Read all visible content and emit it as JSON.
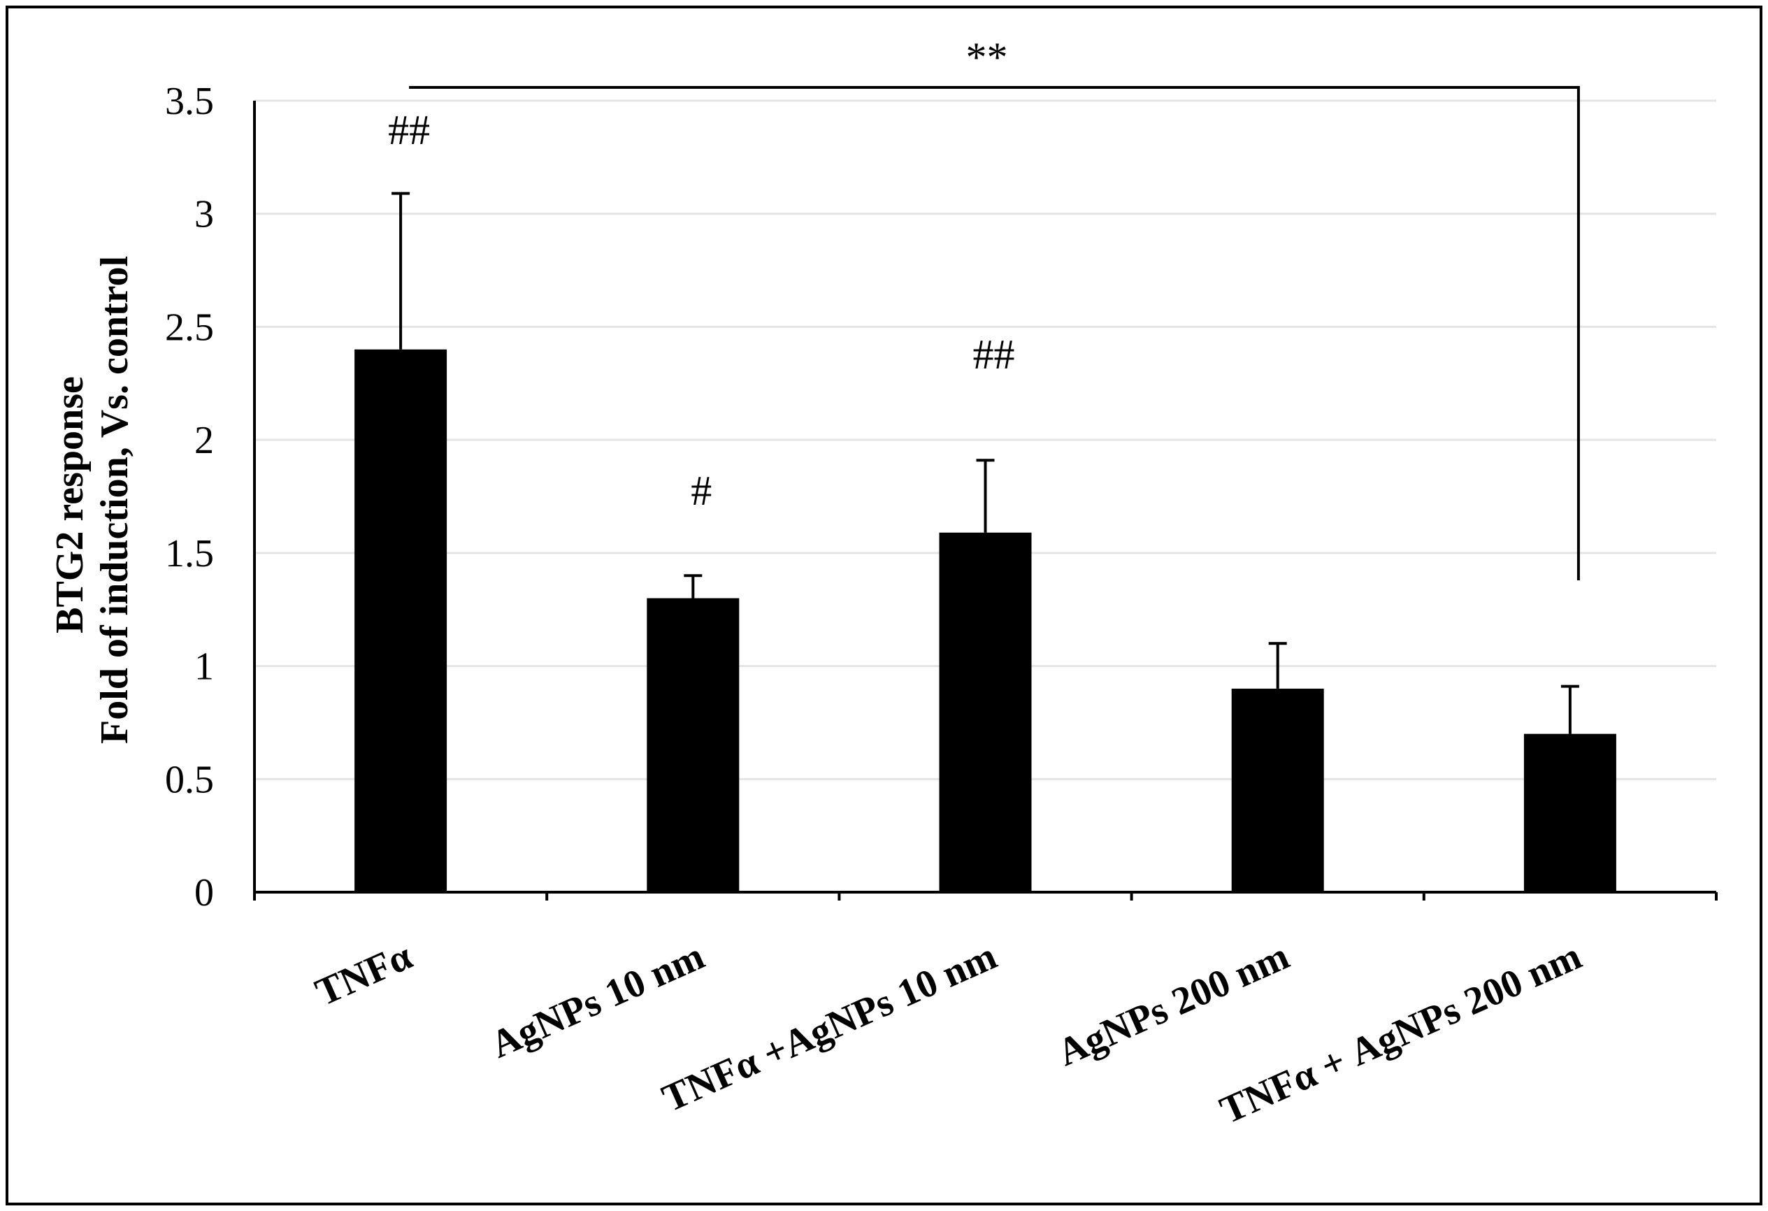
{
  "chart_data": {
    "type": "bar",
    "title": "",
    "xlabel": "",
    "ylabel_lines": [
      "BTG2 response",
      "Fold of induction, Vs. control"
    ],
    "categories": [
      "TNFα",
      "AgNPs 10 nm",
      "TNFα +AgNPs 10 nm",
      "AgNPs 200 nm",
      "TNFα + AgNPs 200 nm"
    ],
    "values": [
      2.4,
      1.3,
      1.59,
      0.9,
      0.7
    ],
    "errors": [
      0.69,
      0.1,
      0.32,
      0.2,
      0.21
    ],
    "annotations": [
      "##",
      "#",
      "##",
      "",
      ""
    ],
    "ylim": [
      0,
      3.5
    ],
    "yticks": [
      0,
      0.5,
      1,
      1.5,
      2,
      2.5,
      3,
      3.5
    ],
    "ytick_labels": [
      "0",
      "0.5",
      "1",
      "1.5",
      "2",
      "2.5",
      "3",
      "3.5"
    ],
    "grid": true,
    "significance": {
      "from_category": 0,
      "to_category": 4,
      "label": "**"
    },
    "colors": {
      "bar": "#000000",
      "grid": "#e4e4e4",
      "axis": "#000000"
    }
  }
}
